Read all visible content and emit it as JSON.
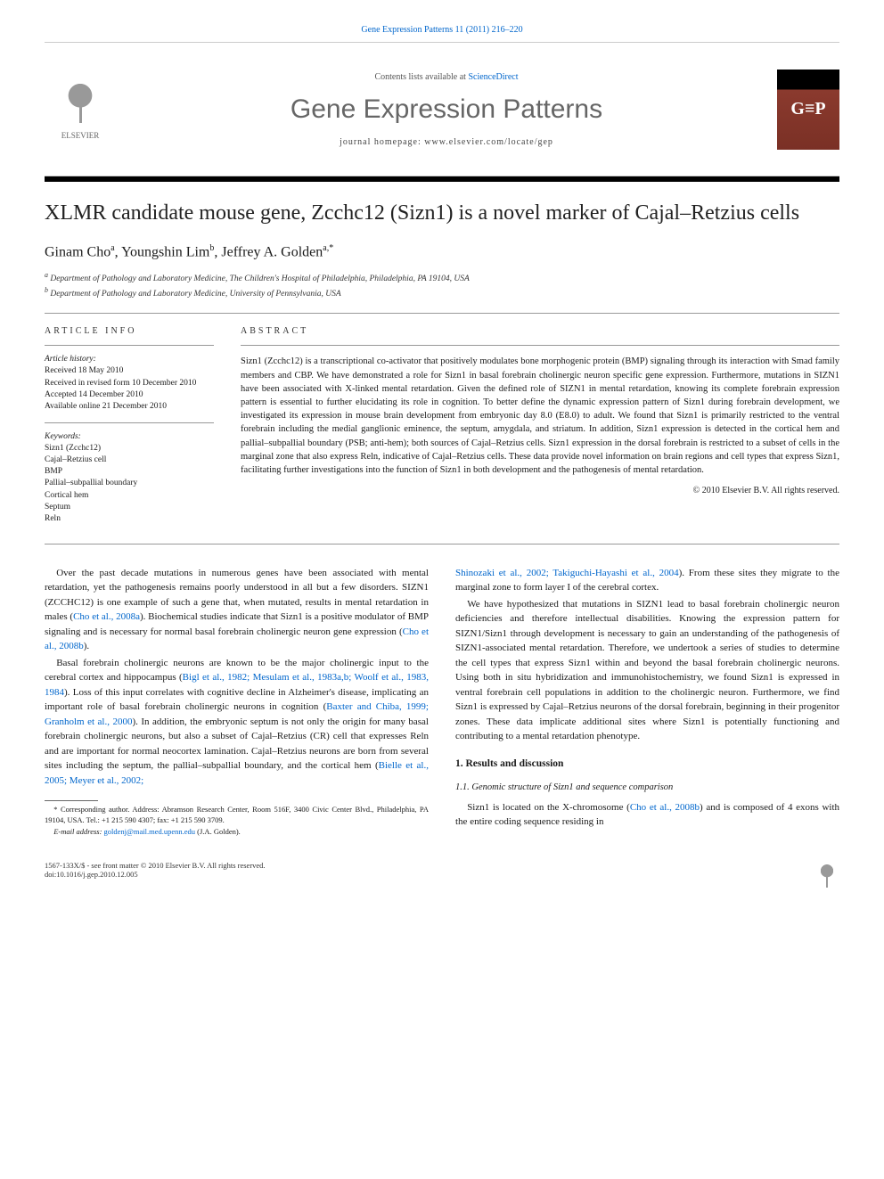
{
  "header": {
    "citation": "Gene Expression Patterns 11 (2011) 216–220",
    "contents_prefix": "Contents lists available at ",
    "contents_link": "ScienceDirect",
    "journal_title": "Gene Expression Patterns",
    "homepage_label": "journal homepage: www.elsevier.com/locate/gep",
    "publisher": "ELSEVIER",
    "cover_text": "G≡P"
  },
  "article": {
    "title": "XLMR candidate mouse gene, Zcchc12 (Sizn1) is a novel marker of Cajal–Retzius cells",
    "authors_html": "Ginam Cho<sup>a</sup>, Youngshin Lim<sup>b</sup>, Jeffrey A. Golden<sup>a,*</sup>",
    "affiliations": {
      "a": "Department of Pathology and Laboratory Medicine, The Children's Hospital of Philadelphia, Philadelphia, PA 19104, USA",
      "b": "Department of Pathology and Laboratory Medicine, University of Pennsylvania, USA"
    }
  },
  "info": {
    "section_label": "ARTICLE INFO",
    "history_label": "Article history:",
    "history": [
      "Received 18 May 2010",
      "Received in revised form 10 December 2010",
      "Accepted 14 December 2010",
      "Available online 21 December 2010"
    ],
    "keywords_label": "Keywords:",
    "keywords": [
      "Sizn1 (Zcchc12)",
      "Cajal–Retzius cell",
      "BMP",
      "Pallial–subpallial boundary",
      "Cortical hem",
      "Septum",
      "Reln"
    ]
  },
  "abstract": {
    "section_label": "ABSTRACT",
    "text": "Sizn1 (Zcchc12) is a transcriptional co-activator that positively modulates bone morphogenic protein (BMP) signaling through its interaction with Smad family members and CBP. We have demonstrated a role for Sizn1 in basal forebrain cholinergic neuron specific gene expression. Furthermore, mutations in SIZN1 have been associated with X-linked mental retardation. Given the defined role of SIZN1 in mental retardation, knowing its complete forebrain expression pattern is essential to further elucidating its role in cognition. To better define the dynamic expression pattern of Sizn1 during forebrain development, we investigated its expression in mouse brain development from embryonic day 8.0 (E8.0) to adult. We found that Sizn1 is primarily restricted to the ventral forebrain including the medial ganglionic eminence, the septum, amygdala, and striatum. In addition, Sizn1 expression is detected in the cortical hem and pallial–subpallial boundary (PSB; anti-hem); both sources of Cajal–Retzius cells. Sizn1 expression in the dorsal forebrain is restricted to a subset of cells in the marginal zone that also express Reln, indicative of Cajal–Retzius cells. These data provide novel information on brain regions and cell types that express Sizn1, facilitating further investigations into the function of Sizn1 in both development and the pathogenesis of mental retardation.",
    "copyright": "© 2010 Elsevier B.V. All rights reserved."
  },
  "body": {
    "p1": "Over the past decade mutations in numerous genes have been associated with mental retardation, yet the pathogenesis remains poorly understood in all but a few disorders. SIZN1 (ZCCHC12) is one example of such a gene that, when mutated, results in mental retardation in males (",
    "p1_cite": "Cho et al., 2008a",
    "p1_end": "). Biochemical studies indicate that Sizn1 is a positive modulator of BMP signaling and is necessary for normal basal forebrain cholinergic neuron gene expression (",
    "p1_cite2": "Cho et al., 2008b",
    "p1_close": ").",
    "p2": "Basal forebrain cholinergic neurons are known to be the major cholinergic input to the cerebral cortex and hippocampus (",
    "p2_cite": "Bigl et al., 1982; Mesulam et al., 1983a,b; Woolf et al., 1983, 1984",
    "p2_mid": "). Loss of this input correlates with cognitive decline in Alzheimer's disease, implicating an important role of basal forebrain cholinergic neurons in cognition (",
    "p2_cite2": "Baxter and Chiba, 1999; Granholm et al., 2000",
    "p2_end": "). In addition, the embryonic septum is not only the origin for many basal forebrain cholinergic neurons, but also a subset of Cajal–Retzius (CR) cell that expresses Reln and are important for normal neocortex lamination. Cajal–Retzius neurons are born from several sites including the septum, the pallial–subpallial boundary, and the cortical hem (",
    "p2_cite3": "Bielle et al., 2005; Meyer et al., 2002;",
    "p3_cite_cont": "Shinozaki et al., 2002; Takiguchi-Hayashi et al., 2004",
    "p3_afterCite": "). From these sites they migrate to the marginal zone to form layer I of the cerebral cortex.",
    "p4": "We have hypothesized that mutations in SIZN1 lead to basal forebrain cholinergic neuron deficiencies and therefore intellectual disabilities. Knowing the expression pattern for SIZN1/Sizn1 through development is necessary to gain an understanding of the pathogenesis of SIZN1-associated mental retardation. Therefore, we undertook a series of studies to determine the cell types that express Sizn1 within and beyond the basal forebrain cholinergic neurons. Using both in situ hybridization and immunohistochemistry, we found Sizn1 is expressed in ventral forebrain cell populations in addition to the cholinergic neuron. Furthermore, we find Sizn1 is expressed by Cajal–Retzius neurons of the dorsal forebrain, beginning in their progenitor zones. These data implicate additional sites where Sizn1 is potentially functioning and contributing to a mental retardation phenotype.",
    "h2": "1. Results and discussion",
    "h3": "1.1. Genomic structure of Sizn1 and sequence comparison",
    "p5a": "Sizn1 is located on the X-chromosome (",
    "p5_cite": "Cho et al., 2008b",
    "p5b": ") and is composed of 4 exons with the entire coding sequence residing in"
  },
  "footnotes": {
    "corr": "* Corresponding author. Address: Abramson Research Center, Room 516F, 3400 Civic Center Blvd., Philadelphia, PA 19104, USA. Tel.: +1 215 590 4307; fax: +1 215 590 3709.",
    "email_label": "E-mail address:",
    "email": "goldenj@mail.med.upenn.edu",
    "email_person": "(J.A. Golden)."
  },
  "bottom": {
    "left1": "1567-133X/$ - see front matter © 2010 Elsevier B.V. All rights reserved.",
    "left2": "doi:10.1016/j.gep.2010.12.005"
  },
  "colors": {
    "link": "#0066cc",
    "text": "#1a1a1a",
    "muted": "#666666",
    "rule": "#999999",
    "cover_top": "#000000",
    "cover_body": "#8b3a2e"
  }
}
